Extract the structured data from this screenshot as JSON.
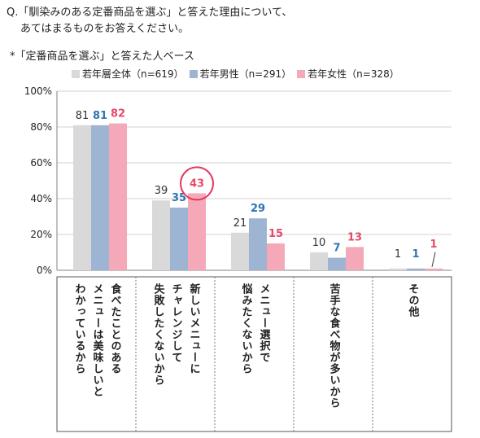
{
  "question": {
    "line1": "Q.「馴染みのある定番商品を選ぶ」と答えた理由について、",
    "line2": "あてはまるものをお答えください。"
  },
  "base_note": "*「定番商品を選ぶ」と答えた人ベース",
  "colors": {
    "all": "#d9d9d9",
    "male": "#9db5d3",
    "female": "#f5a9b8",
    "male_label": "#2e75b6",
    "female_label": "#e8486a",
    "highlight_circle": "#e8335a",
    "axis": "#808080",
    "grid": "#d0d0d0"
  },
  "chart_data": {
    "type": "bar",
    "title": "",
    "xlabel": "",
    "ylabel": "",
    "ylim": [
      0,
      100
    ],
    "yticks": [
      "0%",
      "20%",
      "40%",
      "60%",
      "80%",
      "100%"
    ],
    "legend_placement": "top",
    "grid": true,
    "categories": [
      "食べたことのある\nメニューは美味しいと\nわかっているから",
      "新しいメニューに\nチャレンジして\n失敗したくないから",
      "メニュー選択で\n悩みたくないから",
      "苦手な食べ物が多いから",
      "その他"
    ],
    "series": [
      {
        "name": "若年層全体（n=619）",
        "values": [
          81,
          39,
          21,
          10,
          1
        ]
      },
      {
        "name": "若年男性（n=291）",
        "values": [
          81,
          35,
          29,
          7,
          1
        ]
      },
      {
        "name": "若年女性（n=328）",
        "values": [
          82,
          43,
          15,
          13,
          1
        ]
      }
    ],
    "highlight": {
      "category_index": 1,
      "series_index": 2
    }
  }
}
